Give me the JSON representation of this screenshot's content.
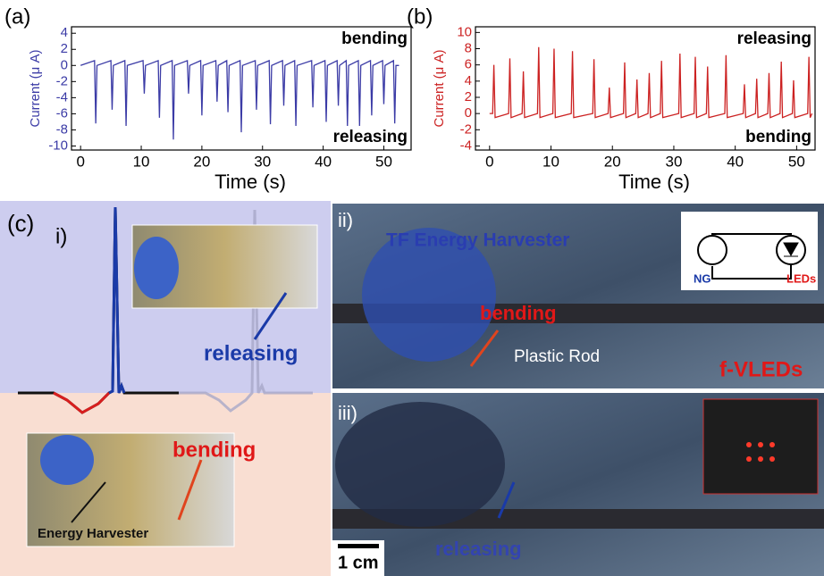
{
  "chart_data": [
    {
      "type": "line",
      "panel_label": "(a)",
      "ylabel": "Current (μ A)",
      "xlabel": "Time (s)",
      "annotations": [
        "bending",
        "releasing"
      ],
      "xlim": [
        -1.5,
        54.5
      ],
      "ylim": [
        -10.5,
        4.8
      ],
      "xticks": [
        0,
        10,
        20,
        30,
        40,
        50
      ],
      "yticks": [
        4,
        2,
        0,
        -2,
        -4,
        -6,
        -8,
        -10
      ],
      "x": [
        0,
        2.3,
        2.5,
        2.7,
        5.0,
        5.2,
        5.4,
        7.3,
        7.5,
        7.7,
        10.3,
        10.5,
        10.7,
        12.8,
        13,
        13.2,
        15.1,
        15.3,
        15.5,
        17.6,
        17.8,
        18,
        19.8,
        20,
        20.2,
        22.3,
        22.5,
        22.7,
        24.1,
        24.3,
        24.5,
        26.3,
        26.5,
        26.7,
        28.8,
        29,
        29.2,
        31.1,
        31.3,
        31.5,
        33.3,
        33.5,
        33.7,
        35.3,
        35.5,
        35.7,
        38.1,
        38.3,
        38.5,
        40.3,
        40.5,
        40.7,
        42.3,
        42.5,
        42.7,
        43.8,
        44,
        44.2,
        45.8,
        46,
        46.2,
        47.8,
        48,
        48.2,
        49.8,
        50,
        50.2,
        51.6,
        51.8,
        52,
        52.5
      ],
      "series": [
        {
          "color": "#3b3ba6",
          "values": [
            0,
            0.6,
            -7.2,
            0,
            0.6,
            -5.5,
            0,
            0.6,
            -7.5,
            0,
            0.6,
            -3.5,
            0,
            0.6,
            -6.5,
            0,
            0.6,
            -9.2,
            0,
            0.6,
            -3.5,
            0,
            0.6,
            -6.2,
            0,
            0.6,
            -4.5,
            0,
            0.6,
            -5.8,
            0,
            0.6,
            -8.3,
            0,
            0.6,
            -5.5,
            0,
            0.6,
            -7.3,
            0,
            0.6,
            -5,
            0,
            0.6,
            -7.5,
            0,
            0.6,
            -5.2,
            0,
            0.6,
            -7,
            0,
            0.6,
            -5,
            0,
            0.6,
            -7.5,
            0,
            0.6,
            -7.5,
            0,
            0.6,
            -6.2,
            0,
            0.6,
            -4.8,
            0,
            0.6,
            -7.2,
            0,
            0
          ]
        }
      ]
    },
    {
      "type": "line",
      "panel_label": "(b)",
      "ylabel": "Current (μ A)",
      "xlabel": "Time (s)",
      "annotations": [
        "releasing",
        "bending"
      ],
      "xlim": [
        -2.3,
        53
      ],
      "ylim": [
        -4.5,
        10.7
      ],
      "xticks": [
        0,
        10,
        20,
        30,
        40,
        50
      ],
      "yticks": [
        10,
        8,
        6,
        4,
        2,
        0,
        -2,
        -4
      ],
      "x": [
        0,
        0.5,
        0.7,
        0.9,
        3.1,
        3.3,
        3.5,
        5.3,
        5.5,
        5.7,
        7.8,
        8,
        8.2,
        10.3,
        10.5,
        10.7,
        13.3,
        13.5,
        13.7,
        16.8,
        17,
        17.2,
        19.3,
        19.5,
        19.7,
        21.8,
        22,
        22.2,
        23.8,
        24,
        24.2,
        25.8,
        26,
        26.2,
        27.8,
        28,
        28.2,
        30.8,
        31,
        31.2,
        33.3,
        33.5,
        33.7,
        35.3,
        35.5,
        35.7,
        38.3,
        38.5,
        38.7,
        41.3,
        41.5,
        41.7,
        43.3,
        43.5,
        43.7,
        45.3,
        45.5,
        45.7,
        47.3,
        47.5,
        47.7,
        49.3,
        49.5,
        49.7,
        51.8,
        52,
        52.2,
        52.5
      ],
      "series": [
        {
          "color": "#cc2222",
          "values": [
            0,
            0,
            6,
            -0.5,
            0,
            6.8,
            -0.5,
            0,
            5.2,
            -0.5,
            0,
            8.2,
            -0.5,
            0,
            8,
            -0.5,
            0,
            7.7,
            -0.5,
            0,
            6.7,
            -0.5,
            0,
            3.2,
            -0.5,
            0,
            6.3,
            -0.5,
            0,
            4.2,
            -0.5,
            0,
            5,
            -0.5,
            0,
            6.5,
            -0.5,
            0,
            7.4,
            -0.5,
            0,
            7,
            -0.5,
            0,
            5.8,
            -0.5,
            0,
            7.2,
            -0.5,
            0,
            3.6,
            -0.5,
            0,
            4.3,
            -0.5,
            0,
            5,
            -0.5,
            0,
            6.4,
            -0.5,
            0,
            4.1,
            -0.5,
            0,
            7,
            -0.5,
            0
          ]
        }
      ]
    }
  ],
  "panel_c": {
    "label": "(c)",
    "i_label": "i)",
    "i_releasing": "releasing",
    "i_bending": "bending",
    "i_harvester": "Energy Harvester",
    "ii_label": "ii)",
    "ii_title": "TF Energy Harvester",
    "ii_bending": "bending",
    "ii_rod": "Plastic Rod",
    "ii_vleds": "f-VLEDs",
    "ii_ng": "NG",
    "ii_leds": "LEDs",
    "iii_label": "iii)",
    "iii_releasing": "releasing",
    "iii_scale": "1 cm"
  }
}
